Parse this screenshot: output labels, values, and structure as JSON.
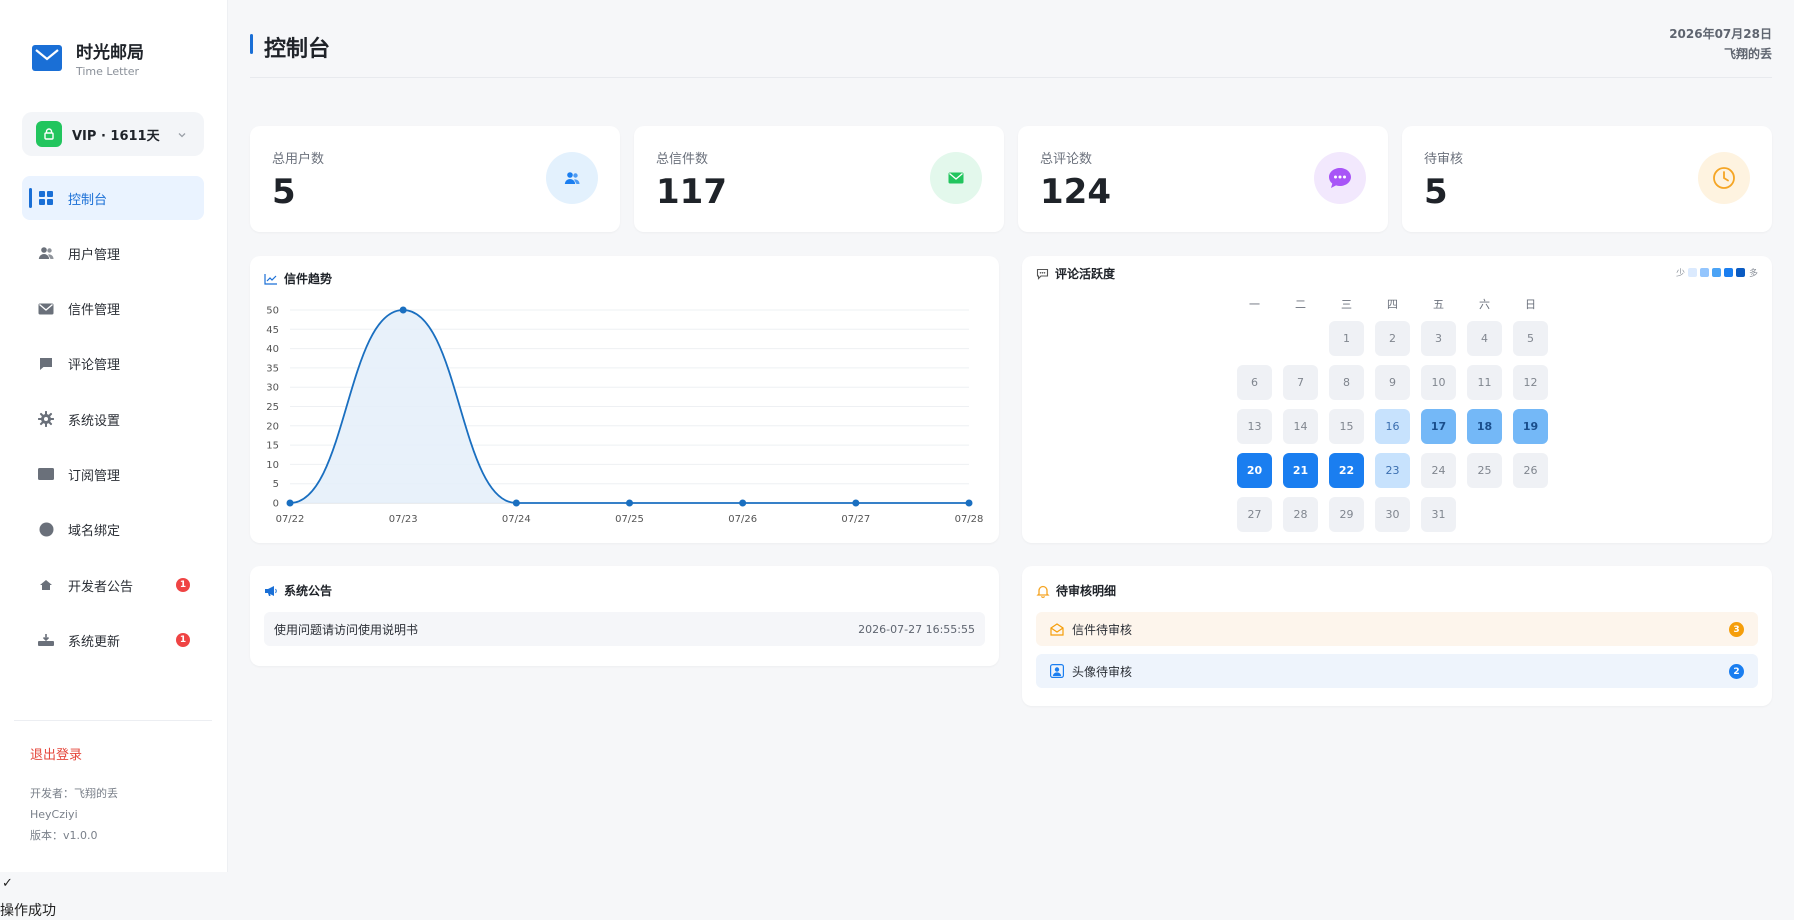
{
  "brand": {
    "title": "时光邮局",
    "subtitle": "Time Letter"
  },
  "vip": {
    "label": "VIP · 1611天"
  },
  "nav": [
    {
      "label": "控制台",
      "icon": "dashboard-icon",
      "active": true
    },
    {
      "label": "用户管理",
      "icon": "users-icon"
    },
    {
      "label": "信件管理",
      "icon": "mail-icon"
    },
    {
      "label": "评论管理",
      "icon": "comment-icon"
    },
    {
      "label": "系统设置",
      "icon": "gear-icon"
    },
    {
      "label": "订阅管理",
      "icon": "card-icon"
    },
    {
      "label": "域名绑定",
      "icon": "globe-icon"
    },
    {
      "label": "开发者公告",
      "icon": "megaphone-icon",
      "badge": "1"
    },
    {
      "label": "系统更新",
      "icon": "update-icon",
      "badge": "1"
    }
  ],
  "sidebar_footer": {
    "logout": "退出登录",
    "developer": "开发者：飞翔的丢",
    "handle": "HeyCziyi",
    "version": "版本：v1.0.0"
  },
  "header": {
    "title": "控制台",
    "date": "2026年07月28日",
    "user": "飞翔的丢"
  },
  "stats": [
    {
      "label": "总用户数",
      "value": "5",
      "icon": "users-icon",
      "color": "#1a7ef0",
      "bg": "#e3f1fd"
    },
    {
      "label": "总信件数",
      "value": "117",
      "icon": "mail-icon",
      "color": "#22c55e",
      "bg": "#e3f8ec"
    },
    {
      "label": "总评论数",
      "value": "124",
      "icon": "chat-icon",
      "color": "#a855f7",
      "bg": "#f2e8fd"
    },
    {
      "label": "待审核",
      "value": "5",
      "icon": "clock-icon",
      "color": "#f5a524",
      "bg": "#fef3e0"
    }
  ],
  "trend": {
    "title": "信件趋势",
    "icon": "line-chart-icon"
  },
  "chart_data": {
    "type": "line",
    "title": "信件趋势",
    "x": [
      "07/22",
      "07/23",
      "07/24",
      "07/25",
      "07/26",
      "07/27",
      "07/28"
    ],
    "series": [
      {
        "values": [
          0,
          50,
          0,
          0,
          0,
          0,
          0
        ]
      }
    ],
    "yticks": [
      0,
      5,
      10,
      15,
      20,
      25,
      30,
      35,
      40,
      45,
      50
    ],
    "ylim": [
      0,
      50
    ],
    "grid": true,
    "smooth": true,
    "color": "#1a6fc0"
  },
  "activity": {
    "title": "评论活跃度",
    "legend_low": "少",
    "legend_high": "多",
    "legend_colors": [
      "#dbeafe",
      "#93c5fd",
      "#4ba3f5",
      "#1a7ef0",
      "#0b5bc2"
    ],
    "weekdays": [
      "一",
      "二",
      "三",
      "四",
      "五",
      "六",
      "日"
    ],
    "leading_blanks": 2,
    "days": [
      {
        "d": "1",
        "l": 0
      },
      {
        "d": "2",
        "l": 0
      },
      {
        "d": "3",
        "l": 0
      },
      {
        "d": "4",
        "l": 0
      },
      {
        "d": "5",
        "l": 0
      },
      {
        "d": "6",
        "l": 0
      },
      {
        "d": "7",
        "l": 0
      },
      {
        "d": "8",
        "l": 0
      },
      {
        "d": "9",
        "l": 0
      },
      {
        "d": "10",
        "l": 0
      },
      {
        "d": "11",
        "l": 0
      },
      {
        "d": "12",
        "l": 0
      },
      {
        "d": "13",
        "l": 0
      },
      {
        "d": "14",
        "l": 0
      },
      {
        "d": "15",
        "l": 0
      },
      {
        "d": "16",
        "l": 1
      },
      {
        "d": "17",
        "l": 2
      },
      {
        "d": "18",
        "l": 2
      },
      {
        "d": "19",
        "l": 2
      },
      {
        "d": "20",
        "l": 3
      },
      {
        "d": "21",
        "l": 3
      },
      {
        "d": "22",
        "l": 3
      },
      {
        "d": "23",
        "l": 1
      },
      {
        "d": "24",
        "l": 0
      },
      {
        "d": "25",
        "l": 0
      },
      {
        "d": "26",
        "l": 0
      },
      {
        "d": "27",
        "l": 0
      },
      {
        "d": "28",
        "l": 0
      },
      {
        "d": "29",
        "l": 0
      },
      {
        "d": "30",
        "l": 0
      },
      {
        "d": "31",
        "l": 0
      }
    ]
  },
  "notices": {
    "title": "系统公告",
    "items": [
      {
        "text": "使用问题请访问使用说明书",
        "time": "2026-07-27 16:55:55"
      }
    ]
  },
  "pending": {
    "title": "待审核明细",
    "items": [
      {
        "label": "信件待审核",
        "count": "3",
        "icon": "mail-open-icon",
        "color": "#f59e0b",
        "bg": "#fdf5ec"
      },
      {
        "label": "头像待审核",
        "count": "2",
        "icon": "avatar-icon",
        "color": "#1a7ef0",
        "bg": "#eef4fc"
      }
    ]
  },
  "toast": {
    "check": "✓",
    "text": "操作成功"
  }
}
